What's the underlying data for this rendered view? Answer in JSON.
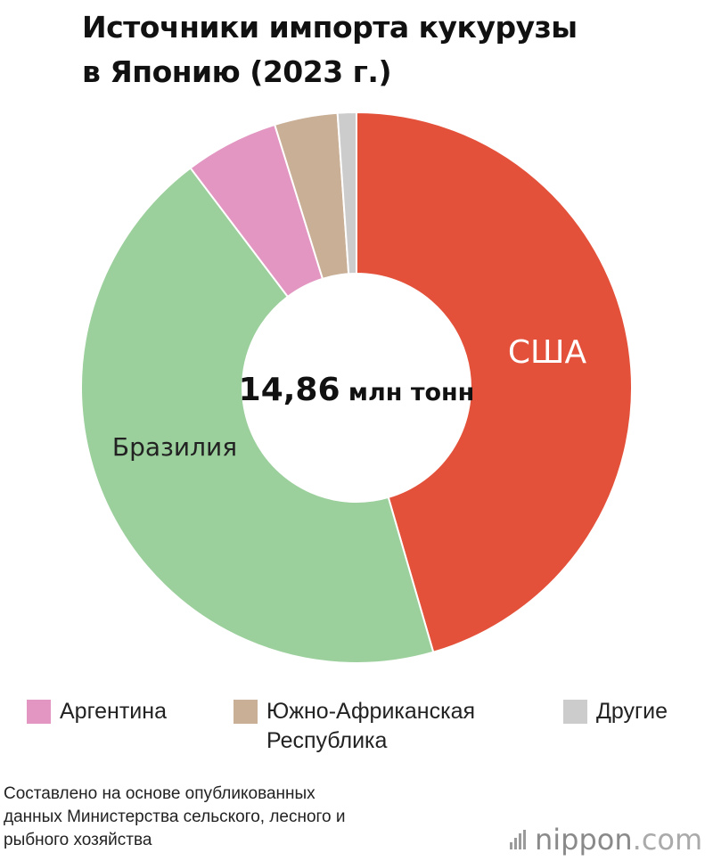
{
  "title": {
    "line1": "Источники импорта кукурузы",
    "line2": "в Японию (2023 г.)"
  },
  "chart_data": {
    "type": "pie",
    "title": "Источники импорта кукурузы в Японию (2023 г.)",
    "center_label": {
      "value": "14,86",
      "unit": "млн тонн"
    },
    "categories": [
      "США",
      "Бразилия",
      "Аргентина",
      "Южно-Африканская Республика",
      "Другие"
    ],
    "values": [
      45.5,
      44.2,
      5.5,
      3.7,
      1.1
    ],
    "colors": [
      "#e4513a",
      "#9bcf9c",
      "#e296c1",
      "#c8af96",
      "#cccccc"
    ],
    "labels_on_chart": [
      "США",
      "Бразилия"
    ],
    "legend_placement": "bottom",
    "legend": [
      {
        "label": "Аргентина",
        "color": "#e296c1"
      },
      {
        "label_line1": "Южно-Африканская",
        "label_line2": "Республика",
        "color": "#c8af96"
      },
      {
        "label": "Другие",
        "color": "#cccccc"
      }
    ]
  },
  "source": {
    "line1": "Составлено на основе опубликованных",
    "line2": "данных Министерства сельского, лесного и",
    "line3": "рыбного хозяйства"
  },
  "logo": {
    "name": "nippon",
    "suffix": ".com"
  }
}
